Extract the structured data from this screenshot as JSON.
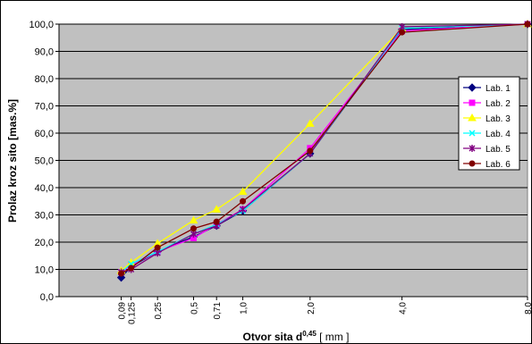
{
  "chart_data": {
    "type": "line",
    "title": "",
    "xlabel": {
      "prefix": "Otvor sita d",
      "sup": "0,45",
      "suffix": " [ mm ]"
    },
    "ylabel": "Prolaz kroz sito [mas.%]",
    "ylim": [
      0,
      100
    ],
    "ytick_step": 10,
    "ytick_labels": [
      "0,0",
      "10,0",
      "20,0",
      "30,0",
      "40,0",
      "50,0",
      "60,0",
      "70,0",
      "80,0",
      "90,0",
      "100,0"
    ],
    "x_scale": "power 0.45",
    "x_values": [
      0.09,
      0.125,
      0.25,
      0.5,
      0.71,
      1.0,
      2.0,
      4.0,
      8.0
    ],
    "x_tick_labels": [
      "0,09",
      "0,125",
      "0,25",
      "0,5",
      "0,71",
      "1,0",
      "2,0",
      "4,0",
      "8,0"
    ],
    "grid": "horizontal",
    "plot_background": "#c0c0c0",
    "legend_position": "right",
    "series": [
      {
        "name": "Lab. 1",
        "color": "#000080",
        "marker": "diamond",
        "values": [
          7.0,
          11.0,
          16.5,
          22.0,
          26.0,
          31.5,
          52.5,
          98.0,
          100.0
        ]
      },
      {
        "name": "Lab. 2",
        "color": "#ff00ff",
        "marker": "square",
        "values": [
          9.0,
          11.5,
          16.5,
          21.5,
          26.5,
          32.0,
          54.5,
          97.5,
          100.0
        ]
      },
      {
        "name": "Lab. 3",
        "color": "#ffff00",
        "marker": "triangle",
        "values": [
          9.5,
          12.5,
          19.5,
          28.0,
          32.0,
          38.5,
          63.5,
          98.5,
          100.0
        ]
      },
      {
        "name": "Lab. 4",
        "color": "#00ffff",
        "marker": "x",
        "values": [
          9.0,
          12.0,
          16.5,
          23.0,
          26.5,
          31.5,
          52.5,
          98.5,
          100.0
        ]
      },
      {
        "name": "Lab. 5",
        "color": "#800080",
        "marker": "star",
        "values": [
          9.0,
          10.0,
          16.0,
          23.0,
          26.0,
          32.0,
          52.5,
          99.0,
          100.0
        ]
      },
      {
        "name": "Lab. 6",
        "color": "#800000",
        "marker": "circle",
        "values": [
          8.5,
          10.5,
          18.0,
          25.0,
          27.5,
          35.0,
          53.5,
          97.0,
          100.0
        ]
      }
    ]
  }
}
